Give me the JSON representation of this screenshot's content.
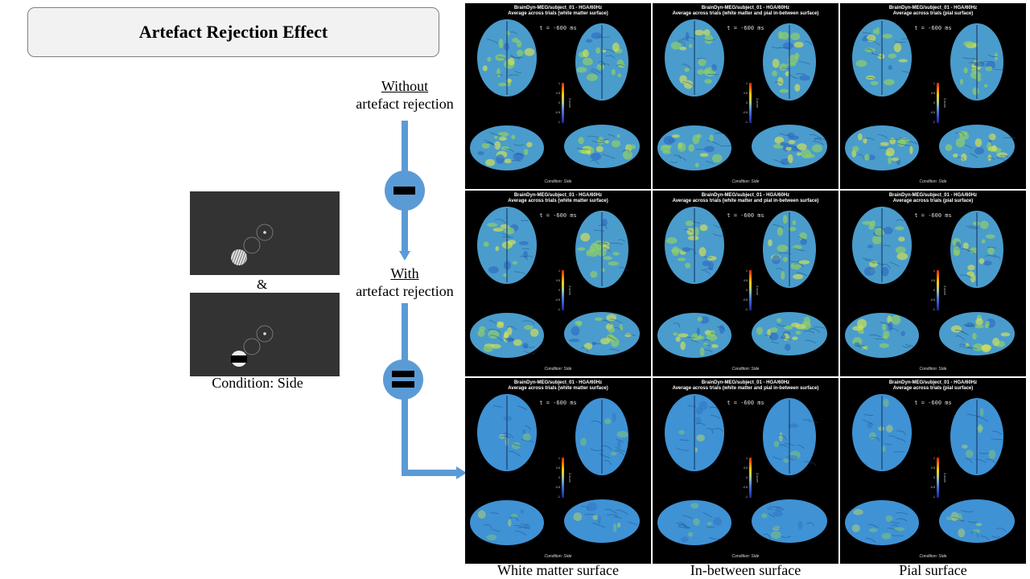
{
  "title": "Artefact Rejection Effect",
  "stimulus": {
    "ampersand": "&",
    "condition_label": "Condition: Side"
  },
  "flow": {
    "without_line1": "Without",
    "without_line2": "artefact rejection",
    "with_line1": "With",
    "with_line2": "artefact rejection",
    "minus_icon": "minus-icon",
    "equals_icon": "equals-icon",
    "accent_color": "#5b9bd5"
  },
  "brain_panels": {
    "header_line1": "BrainDyn-MEG/subject_01 - HGA/60Hz",
    "header_white": "Average across trials (white matter surface)",
    "header_between": "Average across trials (white matter and pial in-between surface)",
    "header_pial": "Average across trials (pial surface)",
    "time_label": "t = -600 ms",
    "condition": "Condition: Side",
    "colorbar_ticks": [
      "1",
      "0.5",
      "0",
      "-0.5",
      "-1"
    ],
    "colorbar_unit": "Z-score"
  },
  "columns": {
    "white": "White matter surface",
    "between": "In-between surface",
    "pial": "Pial surface"
  }
}
